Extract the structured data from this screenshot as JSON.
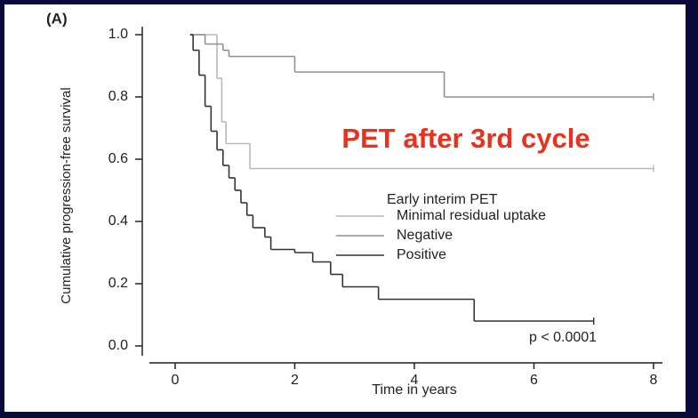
{
  "chart_data": {
    "type": "line",
    "step": true,
    "panel_label": "(A)",
    "xlabel": "Time in years",
    "ylabel": "Cumulative progression-free survival",
    "annotation": "PET after 3rd cycle",
    "p_value": "p < 0.0001",
    "legend_title": "Early interim PET",
    "xlim": [
      0,
      8
    ],
    "ylim": [
      0,
      1
    ],
    "xticks": [
      0,
      2,
      4,
      6,
      8
    ],
    "yticks": [
      {
        "value": 0,
        "label": "0.0"
      },
      {
        "value": 0.2,
        "label": "0.2"
      },
      {
        "value": 0.4,
        "label": "0.4"
      },
      {
        "value": 0.6,
        "label": "0.6"
      },
      {
        "value": 0.8,
        "label": "0.8"
      },
      {
        "value": 1,
        "label": "1.0"
      }
    ],
    "series": [
      {
        "name": "Minimal residual uptake",
        "color": "#b8b8b8",
        "x": [
          0.25,
          0.7,
          0.78,
          0.85,
          1.25,
          8.0
        ],
        "values": [
          1.0,
          0.86,
          0.72,
          0.65,
          0.57,
          0.57
        ]
      },
      {
        "name": "Negative",
        "color": "#909090",
        "x": [
          0.25,
          0.5,
          0.8,
          0.9,
          2.0,
          4.5,
          8.0
        ],
        "values": [
          1.0,
          0.97,
          0.95,
          0.93,
          0.88,
          0.8,
          0.8
        ]
      },
      {
        "name": "Positive",
        "color": "#333333",
        "x": [
          0.25,
          0.3,
          0.4,
          0.5,
          0.6,
          0.7,
          0.8,
          0.9,
          1.0,
          1.1,
          1.2,
          1.3,
          1.5,
          1.6,
          2.0,
          2.3,
          2.6,
          2.8,
          3.4,
          5.0,
          7.0
        ],
        "values": [
          1.0,
          0.95,
          0.87,
          0.77,
          0.69,
          0.63,
          0.58,
          0.54,
          0.5,
          0.46,
          0.42,
          0.38,
          0.35,
          0.31,
          0.3,
          0.27,
          0.23,
          0.19,
          0.15,
          0.08,
          0.08
        ]
      }
    ]
  }
}
